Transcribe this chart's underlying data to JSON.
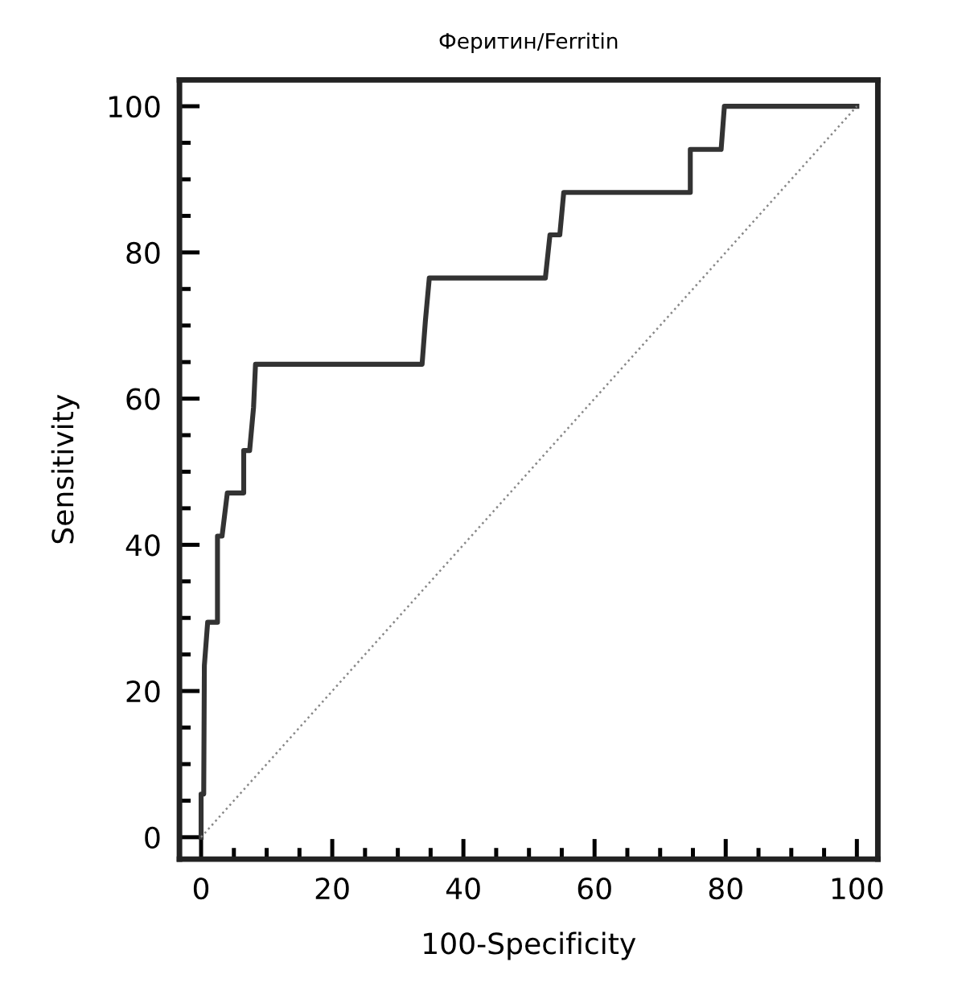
{
  "chart_data": {
    "type": "line",
    "title": "Феритин/Ferritin",
    "xlabel": "100-Specificity",
    "ylabel": "Sensitivity",
    "xlim": [
      -3.3,
      103.2
    ],
    "ylim": [
      -3,
      103.6
    ],
    "xticks": [
      0,
      20,
      40,
      60,
      80,
      100
    ],
    "yticks": [
      0,
      20,
      40,
      60,
      80,
      100
    ],
    "grid": false,
    "marker": "none",
    "series": [
      {
        "color": "#333333",
        "line_style": "solid",
        "x": [
          0,
          0,
          0.4,
          0.5,
          1,
          2.5,
          2.5,
          3.2,
          4,
          6.5,
          6.5,
          7.4,
          8,
          8.3,
          33.7,
          34.2,
          34.8,
          52.5,
          53.2,
          54.7,
          55.3,
          74.6,
          74.6,
          79.3,
          79.8,
          100
        ],
        "values": [
          0,
          5.9,
          5.9,
          23.5,
          29.4,
          29.4,
          41.2,
          41.2,
          47.1,
          47.1,
          52.9,
          52.9,
          58.8,
          64.7,
          64.7,
          70.6,
          76.5,
          76.5,
          82.4,
          82.4,
          88.2,
          88.2,
          94.1,
          94.1,
          100,
          100
        ]
      },
      {
        "color": "#888888",
        "line_style": "dotted",
        "x": [
          0,
          100
        ],
        "values": [
          0,
          100
        ]
      }
    ]
  }
}
